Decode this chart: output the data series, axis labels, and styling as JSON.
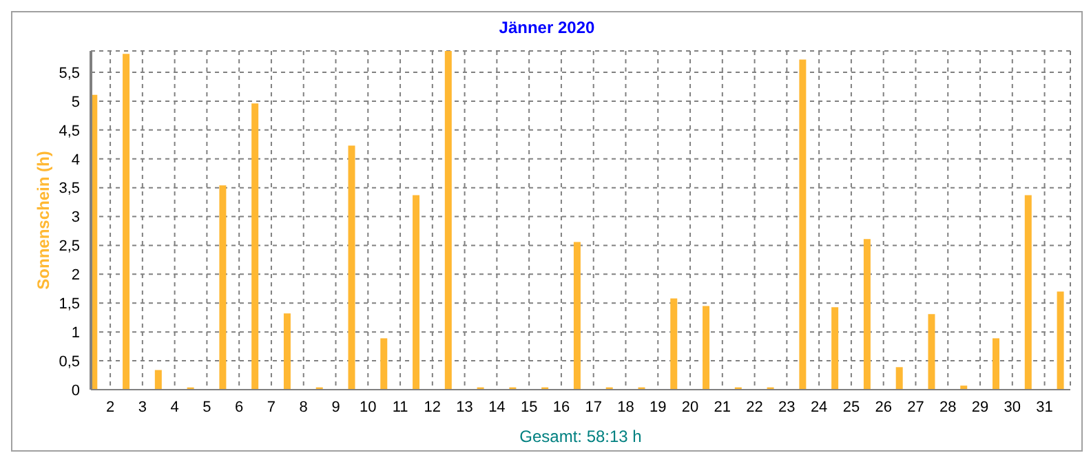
{
  "chart_data": {
    "type": "bar",
    "title": "Jänner 2020",
    "ylabel": "Sonnenschein (h)",
    "xlabel": "Gesamt: 58:13 h",
    "x": [
      1.5,
      2.5,
      3.5,
      4.5,
      5.5,
      6.5,
      7.5,
      8.5,
      9.5,
      10.5,
      11.5,
      12.5,
      13.5,
      14.5,
      15.5,
      16.5,
      17.5,
      18.5,
      19.5,
      20.5,
      21.5,
      22.5,
      23.5,
      24.5,
      25.5,
      26.5,
      27.5,
      28.5,
      29.5,
      30.5,
      31.5
    ],
    "values": [
      5.11,
      5.82,
      0.34,
      0.04,
      3.54,
      4.96,
      1.32,
      0.04,
      4.23,
      0.89,
      3.37,
      5.87,
      0.04,
      0.04,
      0.04,
      2.56,
      0.04,
      0.04,
      1.58,
      1.45,
      0.04,
      0.04,
      5.72,
      1.43,
      2.61,
      0.39,
      1.31,
      0.07,
      0.89,
      3.37,
      1.7
    ],
    "color": "#ffb833",
    "xlim": [
      1.4,
      31.8
    ],
    "xticks": [
      2,
      3,
      4,
      5,
      6,
      7,
      8,
      9,
      10,
      11,
      12,
      13,
      14,
      15,
      16,
      17,
      18,
      19,
      20,
      21,
      22,
      23,
      24,
      25,
      26,
      27,
      28,
      29,
      30,
      31
    ],
    "ylim": [
      0,
      5.87
    ],
    "yticks": [
      0,
      {
        "value": 0.5,
        "label": "0,5"
      },
      1,
      {
        "value": 1.5,
        "label": "1,5"
      },
      2,
      {
        "value": 2.5,
        "label": "2,5"
      },
      3,
      {
        "value": 3.5,
        "label": "3,5"
      },
      4,
      {
        "value": 4.5,
        "label": "4,5"
      },
      5,
      {
        "value": 5.5,
        "label": "5,5"
      }
    ],
    "grid": true,
    "legend": false
  }
}
